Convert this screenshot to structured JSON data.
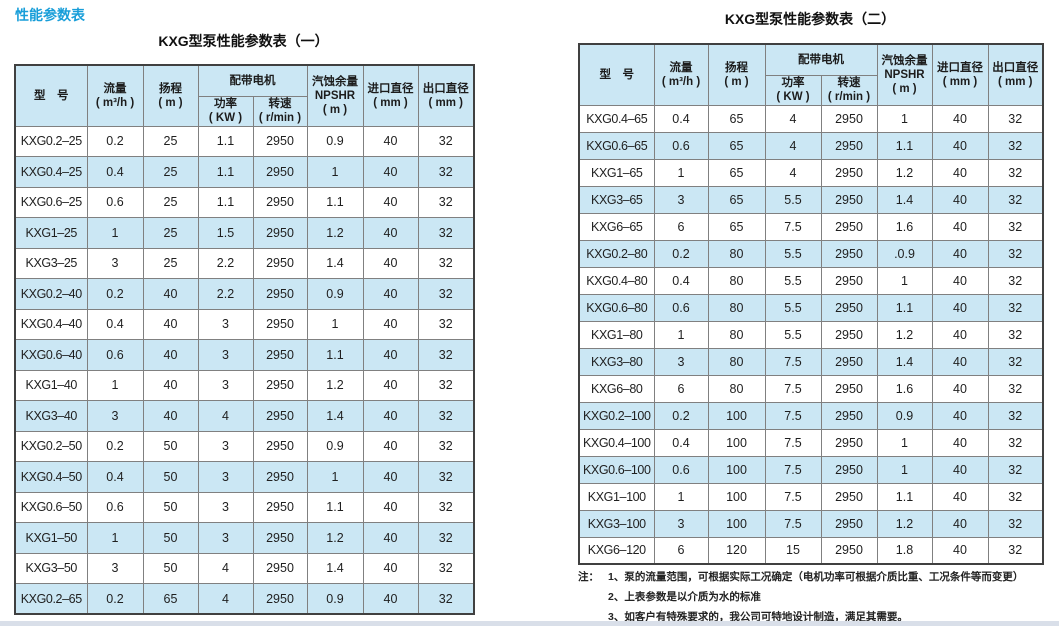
{
  "page": {
    "section_title": "性能参数表",
    "accent_color": "#189ed9",
    "row_highlight_color": "#cbe7f4"
  },
  "table_headers": {
    "model": [
      "型　号"
    ],
    "flow": [
      "流量",
      "( m³/h )"
    ],
    "head": [
      "扬程",
      "( m )"
    ],
    "motor": [
      "配带电机"
    ],
    "power": [
      "功率",
      "( KW )"
    ],
    "speed": [
      "转速",
      "( r/min )"
    ],
    "npshr": [
      "汽蚀余量",
      "NPSHR",
      "( m )"
    ],
    "inlet": [
      "进口直径",
      "( mm )"
    ],
    "outlet": [
      "出口直径",
      "( mm )"
    ]
  },
  "table1": {
    "title": "KXG型泵性能参数表（一）",
    "rows": [
      [
        "KXG0.2–25",
        "0.2",
        "25",
        "1.1",
        "2950",
        "0.9",
        "40",
        "32"
      ],
      [
        "KXG0.4–25",
        "0.4",
        "25",
        "1.1",
        "2950",
        "1",
        "40",
        "32"
      ],
      [
        "KXG0.6–25",
        "0.6",
        "25",
        "1.1",
        "2950",
        "1.1",
        "40",
        "32"
      ],
      [
        "KXG1–25",
        "1",
        "25",
        "1.5",
        "2950",
        "1.2",
        "40",
        "32"
      ],
      [
        "KXG3–25",
        "3",
        "25",
        "2.2",
        "2950",
        "1.4",
        "40",
        "32"
      ],
      [
        "KXG0.2–40",
        "0.2",
        "40",
        "2.2",
        "2950",
        "0.9",
        "40",
        "32"
      ],
      [
        "KXG0.4–40",
        "0.4",
        "40",
        "3",
        "2950",
        "1",
        "40",
        "32"
      ],
      [
        "KXG0.6–40",
        "0.6",
        "40",
        "3",
        "2950",
        "1.1",
        "40",
        "32"
      ],
      [
        "KXG1–40",
        "1",
        "40",
        "3",
        "2950",
        "1.2",
        "40",
        "32"
      ],
      [
        "KXG3–40",
        "3",
        "40",
        "4",
        "2950",
        "1.4",
        "40",
        "32"
      ],
      [
        "KXG0.2–50",
        "0.2",
        "50",
        "3",
        "2950",
        "0.9",
        "40",
        "32"
      ],
      [
        "KXG0.4–50",
        "0.4",
        "50",
        "3",
        "2950",
        "1",
        "40",
        "32"
      ],
      [
        "KXG0.6–50",
        "0.6",
        "50",
        "3",
        "2950",
        "1.1",
        "40",
        "32"
      ],
      [
        "KXG1–50",
        "1",
        "50",
        "3",
        "2950",
        "1.2",
        "40",
        "32"
      ],
      [
        "KXG3–50",
        "3",
        "50",
        "4",
        "2950",
        "1.4",
        "40",
        "32"
      ],
      [
        "KXG0.2–65",
        "0.2",
        "65",
        "4",
        "2950",
        "0.9",
        "40",
        "32"
      ]
    ]
  },
  "table2": {
    "title": "KXG型泵性能参数表（二）",
    "rows": [
      [
        "KXG0.4–65",
        "0.4",
        "65",
        "4",
        "2950",
        "1",
        "40",
        "32"
      ],
      [
        "KXG0.6–65",
        "0.6",
        "65",
        "4",
        "2950",
        "1.1",
        "40",
        "32"
      ],
      [
        "KXG1–65",
        "1",
        "65",
        "4",
        "2950",
        "1.2",
        "40",
        "32"
      ],
      [
        "KXG3–65",
        "3",
        "65",
        "5.5",
        "2950",
        "1.4",
        "40",
        "32"
      ],
      [
        "KXG6–65",
        "6",
        "65",
        "7.5",
        "2950",
        "1.6",
        "40",
        "32"
      ],
      [
        "KXG0.2–80",
        "0.2",
        "80",
        "5.5",
        "2950",
        ".0.9",
        "40",
        "32"
      ],
      [
        "KXG0.4–80",
        "0.4",
        "80",
        "5.5",
        "2950",
        "1",
        "40",
        "32"
      ],
      [
        "KXG0.6–80",
        "0.6",
        "80",
        "5.5",
        "2950",
        "1.1",
        "40",
        "32"
      ],
      [
        "KXG1–80",
        "1",
        "80",
        "5.5",
        "2950",
        "1.2",
        "40",
        "32"
      ],
      [
        "KXG3–80",
        "3",
        "80",
        "7.5",
        "2950",
        "1.4",
        "40",
        "32"
      ],
      [
        "KXG6–80",
        "6",
        "80",
        "7.5",
        "2950",
        "1.6",
        "40",
        "32"
      ],
      [
        "KXG0.2–100",
        "0.2",
        "100",
        "7.5",
        "2950",
        "0.9",
        "40",
        "32"
      ],
      [
        "KXG0.4–100",
        "0.4",
        "100",
        "7.5",
        "2950",
        "1",
        "40",
        "32"
      ],
      [
        "KXG0.6–100",
        "0.6",
        "100",
        "7.5",
        "2950",
        "1",
        "40",
        "32"
      ],
      [
        "KXG1–100",
        "1",
        "100",
        "7.5",
        "2950",
        "1.1",
        "40",
        "32"
      ],
      [
        "KXG3–100",
        "3",
        "100",
        "7.5",
        "2950",
        "1.2",
        "40",
        "32"
      ],
      [
        "KXG6–120",
        "6",
        "120",
        "15",
        "2950",
        "1.8",
        "40",
        "32"
      ]
    ]
  },
  "notes": {
    "label": "注：",
    "items": [
      "1、泵的流量范围，可根据实际工况确定（电机功率可根据介质比重、工况条件等而变更）",
      "2、上表参数是以介质为水的标准",
      "3、如客户有特殊要求的，我公司可特地设计制造，满足其需要。"
    ]
  }
}
